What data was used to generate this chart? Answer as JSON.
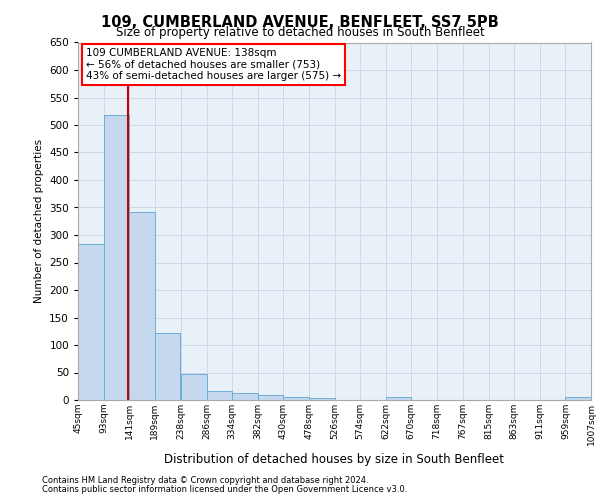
{
  "title1": "109, CUMBERLAND AVENUE, BENFLEET, SS7 5PB",
  "title2": "Size of property relative to detached houses in South Benfleet",
  "xlabel": "Distribution of detached houses by size in South Benfleet",
  "ylabel": "Number of detached properties",
  "footer1": "Contains HM Land Registry data © Crown copyright and database right 2024.",
  "footer2": "Contains public sector information licensed under the Open Government Licence v3.0.",
  "annotation_line1": "109 CUMBERLAND AVENUE: 138sqm",
  "annotation_line2": "← 56% of detached houses are smaller (753)",
  "annotation_line3": "43% of semi-detached houses are larger (575) →",
  "property_size": 138,
  "bar_left_edges": [
    45,
    93,
    141,
    189,
    238,
    286,
    334,
    382,
    430,
    478,
    526,
    574,
    622,
    670,
    718,
    767,
    815,
    863,
    911,
    959
  ],
  "bar_heights": [
    284,
    519,
    341,
    121,
    48,
    17,
    12,
    9,
    6,
    3,
    0,
    0,
    5,
    0,
    0,
    0,
    0,
    0,
    0,
    5
  ],
  "bin_width": 48,
  "bar_color": "#c5d8ed",
  "bar_edge_color": "#6aaed6",
  "marker_color": "#cc0000",
  "ylim": [
    0,
    650
  ],
  "yticks": [
    0,
    50,
    100,
    150,
    200,
    250,
    300,
    350,
    400,
    450,
    500,
    550,
    600,
    650
  ],
  "grid_color": "#d0d8e8",
  "bg_color": "#e8f0f8",
  "tick_labels": [
    "45sqm",
    "93sqm",
    "141sqm",
    "189sqm",
    "238sqm",
    "286sqm",
    "334sqm",
    "382sqm",
    "430sqm",
    "478sqm",
    "526sqm",
    "574sqm",
    "622sqm",
    "670sqm",
    "718sqm",
    "767sqm",
    "815sqm",
    "863sqm",
    "911sqm",
    "959sqm",
    "1007sqm"
  ]
}
